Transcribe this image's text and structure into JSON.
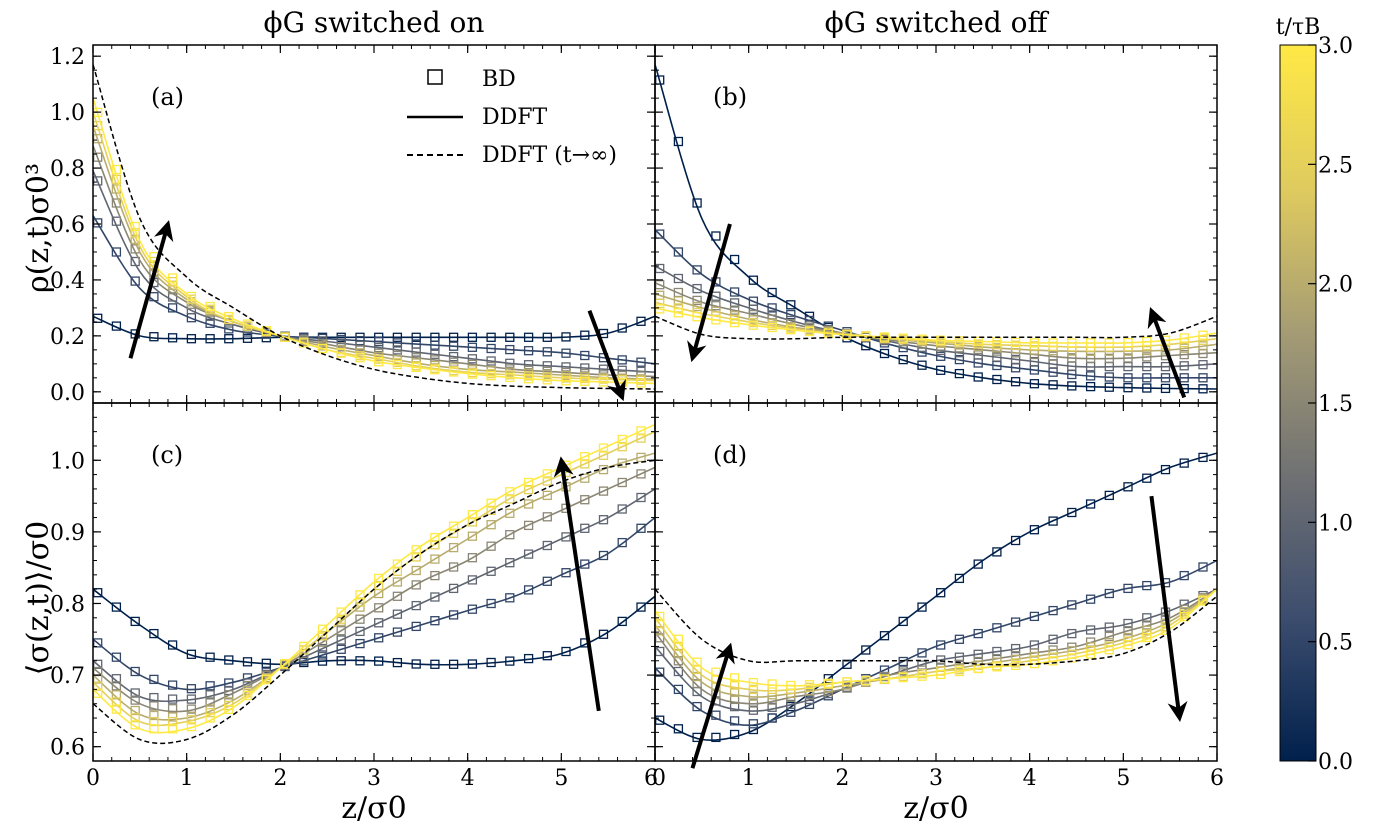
{
  "column_titles": [
    "ϕG switched on",
    "ϕG switched off"
  ],
  "legend": {
    "bd": "BD",
    "ddft": "DDFT",
    "ddft_inf": "DDFT (t→∞)"
  },
  "colorbar": {
    "label": "t/τB",
    "ticks": [
      "0.0",
      "0.5",
      "1.0",
      "1.5",
      "2.0",
      "2.5",
      "3.0"
    ],
    "range": [
      0,
      3
    ],
    "colors": [
      "#00204c",
      "#3c4d6e",
      "#707173",
      "#a59c74",
      "#dfcb5e",
      "#ffe945"
    ]
  },
  "chart_data": [
    {
      "type": "line",
      "panel": "(a)",
      "title": "ϕG switched on",
      "xlabel": "",
      "ylabel": "ρ(z,t)σ0³",
      "xlim": [
        0,
        6
      ],
      "ylim": [
        -0.04,
        1.24
      ],
      "yticks": [
        "0.0",
        "0.2",
        "0.4",
        "0.6",
        "0.8",
        "1.0",
        "1.2"
      ],
      "x": [
        0,
        0.5,
        1,
        1.5,
        2,
        2.5,
        3,
        3.5,
        4,
        4.5,
        5,
        5.5,
        6
      ],
      "series": [
        {
          "t": 0.0,
          "values": [
            0.27,
            0.2,
            0.19,
            0.19,
            0.195,
            0.195,
            0.195,
            0.195,
            0.195,
            0.195,
            0.195,
            0.21,
            0.27
          ]
        },
        {
          "t": 0.5,
          "values": [
            0.63,
            0.37,
            0.27,
            0.22,
            0.2,
            0.19,
            0.18,
            0.17,
            0.16,
            0.15,
            0.14,
            0.12,
            0.1
          ]
        },
        {
          "t": 1.0,
          "values": [
            0.79,
            0.43,
            0.3,
            0.24,
            0.2,
            0.18,
            0.16,
            0.14,
            0.12,
            0.1,
            0.09,
            0.08,
            0.07
          ]
        },
        {
          "t": 1.5,
          "values": [
            0.88,
            0.47,
            0.32,
            0.25,
            0.2,
            0.17,
            0.14,
            0.12,
            0.1,
            0.08,
            0.07,
            0.06,
            0.055
          ]
        },
        {
          "t": 2.0,
          "values": [
            0.95,
            0.5,
            0.33,
            0.25,
            0.2,
            0.16,
            0.13,
            0.1,
            0.08,
            0.07,
            0.06,
            0.05,
            0.045
          ]
        },
        {
          "t": 2.5,
          "values": [
            1.0,
            0.52,
            0.34,
            0.25,
            0.2,
            0.15,
            0.12,
            0.09,
            0.07,
            0.06,
            0.05,
            0.045,
            0.04
          ]
        },
        {
          "t": 3.0,
          "values": [
            1.05,
            0.54,
            0.35,
            0.26,
            0.2,
            0.15,
            0.11,
            0.085,
            0.065,
            0.05,
            0.04,
            0.035,
            0.03
          ]
        }
      ],
      "limit": [
        1.17,
        0.62,
        0.41,
        0.3,
        0.2,
        0.13,
        0.08,
        0.05,
        0.03,
        0.02,
        0.015,
        0.012,
        0.01
      ],
      "arrows": [
        {
          "x1": 0.4,
          "y1": 0.12,
          "x2": 0.8,
          "y2": 0.6
        },
        {
          "x1": 5.3,
          "y1": 0.29,
          "x2": 5.65,
          "y2": -0.02
        }
      ]
    },
    {
      "type": "line",
      "panel": "(b)",
      "title": "ϕG switched off",
      "xlabel": "",
      "ylabel": "",
      "xlim": [
        0,
        6
      ],
      "ylim": [
        -0.04,
        1.24
      ],
      "x": [
        0,
        0.5,
        1,
        1.5,
        2,
        2.5,
        3,
        3.5,
        4,
        4.5,
        5,
        5.5,
        6
      ],
      "series": [
        {
          "t": 0.0,
          "values": [
            1.17,
            0.62,
            0.41,
            0.3,
            0.2,
            0.13,
            0.08,
            0.05,
            0.03,
            0.02,
            0.015,
            0.012,
            0.01
          ]
        },
        {
          "t": 0.5,
          "values": [
            0.58,
            0.42,
            0.33,
            0.27,
            0.22,
            0.17,
            0.13,
            0.1,
            0.08,
            0.06,
            0.05,
            0.05,
            0.05
          ]
        },
        {
          "t": 1.0,
          "values": [
            0.45,
            0.36,
            0.3,
            0.25,
            0.21,
            0.18,
            0.15,
            0.13,
            0.11,
            0.09,
            0.09,
            0.09,
            0.1
          ]
        },
        {
          "t": 1.5,
          "values": [
            0.39,
            0.32,
            0.28,
            0.24,
            0.21,
            0.185,
            0.165,
            0.15,
            0.135,
            0.12,
            0.12,
            0.13,
            0.14
          ]
        },
        {
          "t": 2.0,
          "values": [
            0.35,
            0.3,
            0.26,
            0.23,
            0.21,
            0.19,
            0.175,
            0.16,
            0.15,
            0.145,
            0.145,
            0.15,
            0.17
          ]
        },
        {
          "t": 2.5,
          "values": [
            0.32,
            0.28,
            0.25,
            0.225,
            0.205,
            0.19,
            0.18,
            0.17,
            0.165,
            0.16,
            0.16,
            0.17,
            0.19
          ]
        },
        {
          "t": 3.0,
          "values": [
            0.3,
            0.265,
            0.24,
            0.22,
            0.205,
            0.195,
            0.185,
            0.18,
            0.175,
            0.175,
            0.175,
            0.185,
            0.21
          ]
        }
      ],
      "limit": [
        0.27,
        0.205,
        0.19,
        0.19,
        0.195,
        0.195,
        0.195,
        0.195,
        0.195,
        0.195,
        0.195,
        0.21,
        0.27
      ],
      "arrows": [
        {
          "x1": 0.8,
          "y1": 0.6,
          "x2": 0.4,
          "y2": 0.12
        },
        {
          "x1": 5.65,
          "y1": -0.02,
          "x2": 5.3,
          "y2": 0.29
        }
      ]
    },
    {
      "type": "line",
      "panel": "(c)",
      "title": "",
      "xlabel": "z/σ0",
      "ylabel": "⟨σ(z,t)⟩/σ0",
      "xlim": [
        0,
        6
      ],
      "ylim": [
        0.58,
        1.08
      ],
      "yticks": [
        "0.6",
        "0.7",
        "0.8",
        "0.9",
        "1.0"
      ],
      "xticks": [
        "0",
        "1",
        "2",
        "3",
        "4",
        "5",
        "6"
      ],
      "x": [
        0,
        0.5,
        1,
        1.5,
        2,
        2.5,
        3,
        3.5,
        4,
        4.5,
        5,
        5.5,
        6
      ],
      "series": [
        {
          "t": 0.0,
          "values": [
            0.82,
            0.77,
            0.73,
            0.72,
            0.715,
            0.72,
            0.72,
            0.715,
            0.715,
            0.72,
            0.73,
            0.76,
            0.81
          ]
        },
        {
          "t": 0.5,
          "values": [
            0.75,
            0.7,
            0.68,
            0.69,
            0.71,
            0.73,
            0.75,
            0.77,
            0.79,
            0.81,
            0.84,
            0.87,
            0.92
          ]
        },
        {
          "t": 1.0,
          "values": [
            0.72,
            0.67,
            0.665,
            0.68,
            0.71,
            0.74,
            0.77,
            0.8,
            0.83,
            0.86,
            0.89,
            0.92,
            0.96
          ]
        },
        {
          "t": 1.5,
          "values": [
            0.71,
            0.66,
            0.65,
            0.675,
            0.71,
            0.75,
            0.79,
            0.83,
            0.86,
            0.9,
            0.93,
            0.96,
            0.99
          ]
        },
        {
          "t": 2.0,
          "values": [
            0.7,
            0.645,
            0.64,
            0.665,
            0.71,
            0.76,
            0.81,
            0.85,
            0.89,
            0.93,
            0.96,
            0.99,
            1.01
          ]
        },
        {
          "t": 2.5,
          "values": [
            0.69,
            0.635,
            0.635,
            0.66,
            0.71,
            0.76,
            0.82,
            0.87,
            0.91,
            0.95,
            0.98,
            1.01,
            1.04
          ]
        },
        {
          "t": 3.0,
          "values": [
            0.68,
            0.625,
            0.625,
            0.655,
            0.71,
            0.77,
            0.83,
            0.88,
            0.92,
            0.96,
            0.99,
            1.02,
            1.05
          ]
        }
      ],
      "limit": [
        0.66,
        0.61,
        0.61,
        0.645,
        0.7,
        0.76,
        0.82,
        0.87,
        0.91,
        0.94,
        0.97,
        0.99,
        1.0
      ],
      "arrows": [
        {
          "x1": 5.4,
          "y1": 0.65,
          "x2": 5.0,
          "y2": 1.0
        }
      ]
    },
    {
      "type": "line",
      "panel": "(d)",
      "title": "",
      "xlabel": "z/σ0",
      "ylabel": "",
      "xlim": [
        0,
        6
      ],
      "ylim": [
        0.58,
        1.08
      ],
      "xticks": [
        "0",
        "1",
        "2",
        "3",
        "4",
        "5",
        "6"
      ],
      "x": [
        0,
        0.5,
        1,
        1.5,
        2,
        2.5,
        3,
        3.5,
        4,
        4.5,
        5,
        5.5,
        6
      ],
      "series": [
        {
          "t": 0.0,
          "values": [
            0.64,
            0.61,
            0.62,
            0.66,
            0.71,
            0.76,
            0.81,
            0.86,
            0.9,
            0.93,
            0.96,
            0.99,
            1.01
          ]
        },
        {
          "t": 0.5,
          "values": [
            0.71,
            0.65,
            0.63,
            0.65,
            0.68,
            0.71,
            0.74,
            0.76,
            0.78,
            0.8,
            0.82,
            0.83,
            0.86
          ]
        },
        {
          "t": 1.0,
          "values": [
            0.74,
            0.67,
            0.65,
            0.66,
            0.68,
            0.7,
            0.72,
            0.73,
            0.74,
            0.76,
            0.77,
            0.79,
            0.82
          ]
        },
        {
          "t": 1.5,
          "values": [
            0.76,
            0.68,
            0.66,
            0.67,
            0.68,
            0.7,
            0.71,
            0.72,
            0.73,
            0.74,
            0.76,
            0.78,
            0.82
          ]
        },
        {
          "t": 2.0,
          "values": [
            0.77,
            0.69,
            0.67,
            0.675,
            0.685,
            0.695,
            0.705,
            0.715,
            0.725,
            0.735,
            0.75,
            0.775,
            0.82
          ]
        },
        {
          "t": 2.5,
          "values": [
            0.78,
            0.7,
            0.68,
            0.68,
            0.69,
            0.695,
            0.705,
            0.71,
            0.72,
            0.73,
            0.745,
            0.77,
            0.82
          ]
        },
        {
          "t": 3.0,
          "values": [
            0.79,
            0.71,
            0.69,
            0.685,
            0.69,
            0.695,
            0.7,
            0.71,
            0.715,
            0.725,
            0.74,
            0.765,
            0.82
          ]
        }
      ],
      "limit": [
        0.82,
        0.75,
        0.72,
        0.72,
        0.72,
        0.72,
        0.72,
        0.715,
        0.715,
        0.72,
        0.73,
        0.76,
        0.81
      ],
      "arrows": [
        {
          "x1": 0.4,
          "y1": 0.57,
          "x2": 0.8,
          "y2": 0.74
        },
        {
          "x1": 5.3,
          "y1": 0.95,
          "x2": 5.6,
          "y2": 0.64
        }
      ]
    }
  ]
}
